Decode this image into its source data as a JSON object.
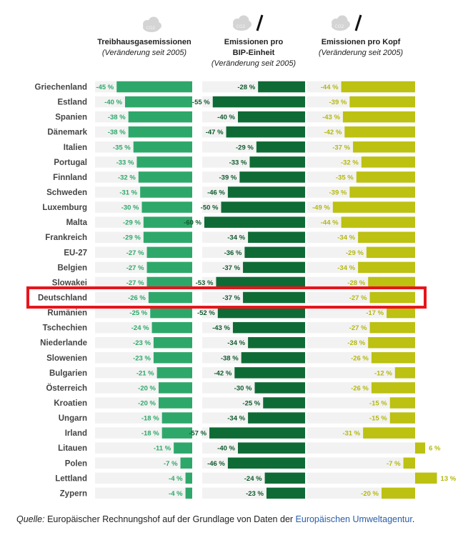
{
  "chart_data": {
    "type": "bar",
    "unit": "%",
    "icon_label": "CO2",
    "highlight": "Deutschland",
    "categories": [
      "Griechenland",
      "Estland",
      "Spanien",
      "Dänemark",
      "Italien",
      "Portugal",
      "Finnland",
      "Schweden",
      "Luxemburg",
      "Malta",
      "Frankreich",
      "EU-27",
      "Belgien",
      "Slowakei",
      "Deutschland",
      "Rumänien",
      "Tschechien",
      "Niederlande",
      "Slowenien",
      "Bulgarien",
      "Österreich",
      "Kroatien",
      "Ungarn",
      "Irland",
      "Litauen",
      "Polen",
      "Lettland",
      "Zypern"
    ],
    "series": [
      {
        "name": "Treibhausgasemissionen",
        "subtitle": "(Veränderung seit 2005)",
        "color": "#2ea86a",
        "label_color": "#2ea86a",
        "values": [
          -45,
          -40,
          -38,
          -38,
          -35,
          -33,
          -32,
          -31,
          -30,
          -29,
          -29,
          -27,
          -27,
          -27,
          -26,
          -25,
          -24,
          -23,
          -23,
          -21,
          -20,
          -20,
          -18,
          -18,
          -11,
          -7,
          -4,
          -4
        ]
      },
      {
        "name": "Emissionen pro BIP-Einheit",
        "name_line1": "Emissionen pro",
        "name_line2": "BIP-Einheit",
        "subtitle": "(Veränderung seit 2005)",
        "color": "#0f6b35",
        "label_color": "#0f5a2c",
        "values": [
          -28,
          -55,
          -40,
          -47,
          -29,
          -33,
          -39,
          -46,
          -50,
          -60,
          -34,
          -36,
          -37,
          -53,
          -37,
          -52,
          -43,
          -34,
          -38,
          -42,
          -30,
          -25,
          -34,
          -57,
          -40,
          -46,
          -24,
          -23
        ]
      },
      {
        "name": "Emissionen pro Kopf",
        "subtitle": "(Veränderung seit 2005)",
        "color": "#bcc112",
        "label_color": "#b4b80e",
        "values": [
          -44,
          -39,
          -43,
          -42,
          -37,
          -32,
          -35,
          -39,
          -49,
          -44,
          -34,
          -29,
          -34,
          -28,
          -27,
          -17,
          -27,
          -28,
          -26,
          -12,
          -26,
          -15,
          -15,
          -31,
          6,
          -7,
          13,
          -20
        ]
      }
    ],
    "source": {
      "prefix": "Quelle:",
      "text": " Europäischer Rechnungshof auf der Grundlage von Daten der ",
      "link": "Europäischen Umweltagentur",
      "suffix": "."
    }
  }
}
